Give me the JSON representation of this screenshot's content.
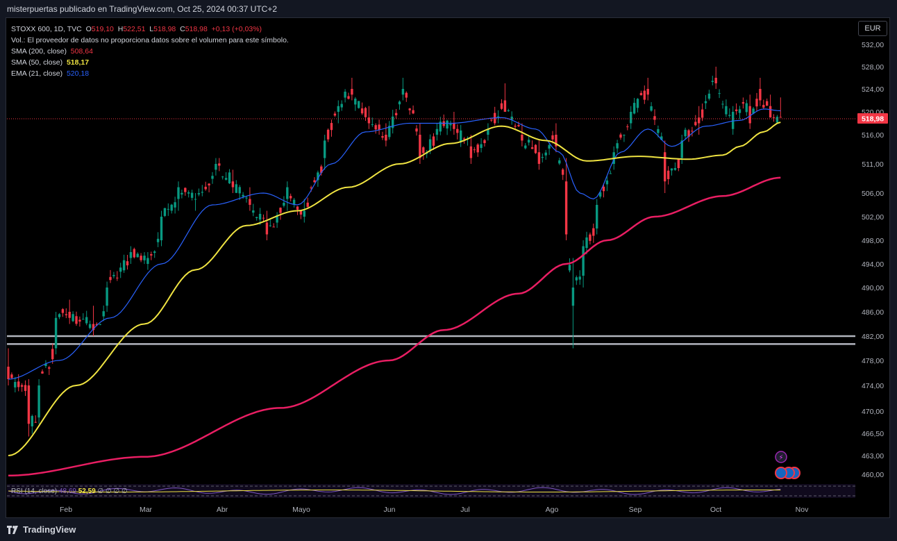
{
  "header": {
    "text": "misterpuertas publicado en TradingView.com, Oct 25, 2024 00:37 UTC+2"
  },
  "footer": {
    "logo_text": "TradingView"
  },
  "currency": "EUR",
  "legend": {
    "symbol": "STOXX 600, 1D, TVC",
    "o_label": "O",
    "o_val": "519,10",
    "h_label": "H",
    "h_val": "522,51",
    "l_label": "L",
    "l_val": "518,98",
    "c_label": "C",
    "c_val": "518,98",
    "change": "+0,13 (+0,03%)",
    "vol": "Vol.: El proveedor de datos no proporciona datos sobre el volumen para este símbolo.",
    "sma200_label": "SMA (200, close)",
    "sma200_val": "508,64",
    "sma50_label": "SMA (50, close)",
    "sma50_val": "518,17",
    "ema21_label": "EMA (21, close)",
    "ema21_val": "520,18"
  },
  "rsi": {
    "label": "RSI (14, close)",
    "v1": "48,69",
    "v2": "52,59",
    "rest": "∅ ∅ ∅ ∅"
  },
  "colors": {
    "up": "#089981",
    "down": "#f23645",
    "sma200": "#e91e63",
    "sma50": "#f0e442",
    "ema21": "#2962ff",
    "hline": "#b2b5be"
  },
  "chart_data": {
    "type": "candlestick",
    "last_price": "518,98",
    "y_ticks": [
      "532,00",
      "528,00",
      "524,00",
      "520,00",
      "516,00",
      "511,00",
      "506,00",
      "502,00",
      "498,00",
      "494,00",
      "490,00",
      "486,00",
      "482,00",
      "478,00",
      "474,00",
      "470,00",
      "466,50",
      "463,00",
      "460,00"
    ],
    "x_ticks": [
      "Feb",
      "Mar",
      "Abr",
      "Mayo",
      "Jun",
      "Jul",
      "Ago",
      "Sep",
      "Oct",
      "Nov"
    ],
    "horizontal_lines": [
      482.0,
      480.7
    ],
    "ohlc_keypoints": [
      {
        "d": 0,
        "o": 477,
        "h": 480,
        "l": 474,
        "c": 475
      },
      {
        "d": 6,
        "o": 474,
        "h": 475,
        "l": 466,
        "c": 468
      },
      {
        "d": 9,
        "o": 469,
        "h": 475,
        "l": 468,
        "c": 474
      },
      {
        "d": 14,
        "o": 480,
        "h": 486,
        "l": 479,
        "c": 485
      },
      {
        "d": 18,
        "o": 486,
        "h": 488,
        "l": 484,
        "c": 485
      },
      {
        "d": 25,
        "o": 484,
        "h": 487,
        "l": 482,
        "c": 483
      },
      {
        "d": 29,
        "o": 487,
        "h": 491,
        "l": 486,
        "c": 490
      },
      {
        "d": 36,
        "o": 495,
        "h": 497,
        "l": 494,
        "c": 496
      },
      {
        "d": 41,
        "o": 494,
        "h": 496,
        "l": 493,
        "c": 495
      },
      {
        "d": 45,
        "o": 498,
        "h": 503,
        "l": 497,
        "c": 502
      },
      {
        "d": 50,
        "o": 505,
        "h": 508,
        "l": 503,
        "c": 507
      },
      {
        "d": 55,
        "o": 505,
        "h": 506,
        "l": 503,
        "c": 505
      },
      {
        "d": 61,
        "o": 510,
        "h": 512,
        "l": 509,
        "c": 511
      },
      {
        "d": 66,
        "o": 508,
        "h": 510,
        "l": 506,
        "c": 507
      },
      {
        "d": 71,
        "o": 505,
        "h": 507,
        "l": 503,
        "c": 504
      },
      {
        "d": 76,
        "o": 501,
        "h": 503,
        "l": 498,
        "c": 499
      },
      {
        "d": 82,
        "o": 505,
        "h": 508,
        "l": 503,
        "c": 507
      },
      {
        "d": 87,
        "o": 502,
        "h": 505,
        "l": 501,
        "c": 503
      },
      {
        "d": 93,
        "o": 512,
        "h": 516,
        "l": 510,
        "c": 515
      },
      {
        "d": 97,
        "o": 520,
        "h": 522,
        "l": 518,
        "c": 521
      },
      {
        "d": 101,
        "o": 524,
        "h": 526,
        "l": 522,
        "c": 523
      },
      {
        "d": 106,
        "o": 519,
        "h": 521,
        "l": 517,
        "c": 518
      },
      {
        "d": 111,
        "o": 516,
        "h": 518,
        "l": 514,
        "c": 515
      },
      {
        "d": 116,
        "o": 523,
        "h": 526,
        "l": 522,
        "c": 524
      },
      {
        "d": 121,
        "o": 516,
        "h": 518,
        "l": 511,
        "c": 512
      },
      {
        "d": 126,
        "o": 516,
        "h": 518,
        "l": 515,
        "c": 517
      },
      {
        "d": 131,
        "o": 518,
        "h": 520,
        "l": 516,
        "c": 517
      },
      {
        "d": 136,
        "o": 514,
        "h": 516,
        "l": 511,
        "c": 512
      },
      {
        "d": 141,
        "o": 516,
        "h": 518,
        "l": 515,
        "c": 517
      },
      {
        "d": 146,
        "o": 522,
        "h": 525,
        "l": 520,
        "c": 520
      },
      {
        "d": 151,
        "o": 516,
        "h": 518,
        "l": 514,
        "c": 515
      },
      {
        "d": 156,
        "o": 513,
        "h": 515,
        "l": 510,
        "c": 511
      },
      {
        "d": 161,
        "o": 516,
        "h": 518,
        "l": 513,
        "c": 514
      },
      {
        "d": 164,
        "o": 508,
        "h": 512,
        "l": 498,
        "c": 499
      },
      {
        "d": 166,
        "o": 487,
        "h": 495,
        "l": 480,
        "c": 490
      },
      {
        "d": 169,
        "o": 492,
        "h": 498,
        "l": 490,
        "c": 497
      },
      {
        "d": 173,
        "o": 500,
        "h": 505,
        "l": 499,
        "c": 504
      },
      {
        "d": 178,
        "o": 511,
        "h": 514,
        "l": 510,
        "c": 513
      },
      {
        "d": 183,
        "o": 518,
        "h": 521,
        "l": 517,
        "c": 520
      },
      {
        "d": 188,
        "o": 524,
        "h": 526,
        "l": 522,
        "c": 523
      },
      {
        "d": 193,
        "o": 513,
        "h": 515,
        "l": 506,
        "c": 508
      },
      {
        "d": 198,
        "o": 512,
        "h": 516,
        "l": 511,
        "c": 515
      },
      {
        "d": 203,
        "o": 519,
        "h": 521,
        "l": 516,
        "c": 518
      },
      {
        "d": 208,
        "o": 526,
        "h": 528,
        "l": 524,
        "c": 525
      },
      {
        "d": 213,
        "o": 517,
        "h": 521,
        "l": 516,
        "c": 520
      },
      {
        "d": 218,
        "o": 521,
        "h": 523,
        "l": 517,
        "c": 518
      },
      {
        "d": 221,
        "o": 524,
        "h": 526,
        "l": 521,
        "c": 522
      },
      {
        "d": 224,
        "o": 521,
        "h": 523,
        "l": 519,
        "c": 519
      },
      {
        "d": 227,
        "o": 519.1,
        "h": 522.51,
        "l": 518.98,
        "c": 518.98
      }
    ],
    "sma200_keypoints": [
      [
        0,
        459.8
      ],
      [
        40,
        462.8
      ],
      [
        80,
        470.5
      ],
      [
        112,
        478
      ],
      [
        128,
        483
      ],
      [
        150,
        489
      ],
      [
        164,
        494
      ],
      [
        176,
        498
      ],
      [
        190,
        502
      ],
      [
        210,
        505.5
      ],
      [
        227,
        508.64
      ]
    ],
    "sma50_keypoints": [
      [
        0,
        463
      ],
      [
        20,
        474
      ],
      [
        40,
        484
      ],
      [
        55,
        493
      ],
      [
        70,
        500.5
      ],
      [
        85,
        503
      ],
      [
        100,
        507
      ],
      [
        115,
        511
      ],
      [
        130,
        514.5
      ],
      [
        145,
        517.5
      ],
      [
        158,
        515
      ],
      [
        170,
        511.5
      ],
      [
        185,
        512.3
      ],
      [
        200,
        511.8
      ],
      [
        210,
        512.5
      ],
      [
        215,
        514
      ],
      [
        222,
        516.5
      ],
      [
        227,
        518.17
      ]
    ],
    "ema21_keypoints": [
      [
        0,
        475
      ],
      [
        15,
        478
      ],
      [
        30,
        485
      ],
      [
        45,
        494
      ],
      [
        60,
        504
      ],
      [
        75,
        506
      ],
      [
        85,
        504
      ],
      [
        95,
        511
      ],
      [
        105,
        516.5
      ],
      [
        118,
        518
      ],
      [
        130,
        518
      ],
      [
        145,
        519
      ],
      [
        155,
        517
      ],
      [
        162,
        513
      ],
      [
        168,
        506
      ],
      [
        172,
        505
      ],
      [
        180,
        513
      ],
      [
        188,
        517
      ],
      [
        195,
        514
      ],
      [
        205,
        517.5
      ],
      [
        215,
        518.5
      ],
      [
        222,
        520.5
      ],
      [
        227,
        520.18
      ]
    ]
  }
}
